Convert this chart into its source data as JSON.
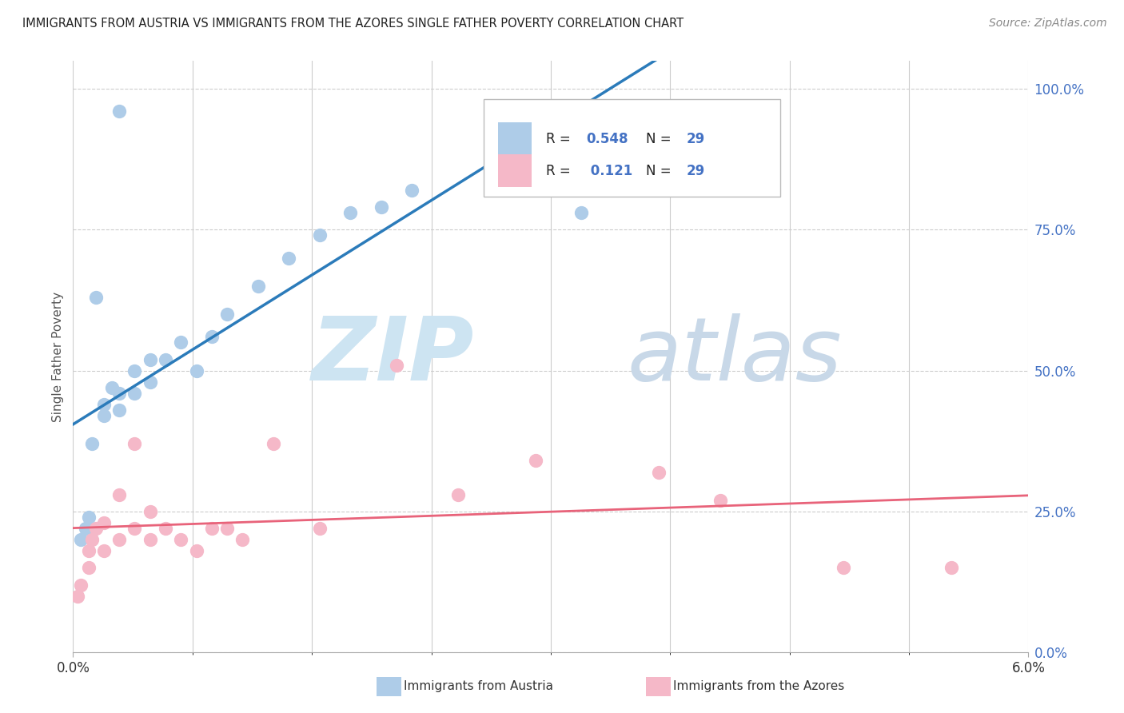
{
  "title": "IMMIGRANTS FROM AUSTRIA VS IMMIGRANTS FROM THE AZORES SINGLE FATHER POVERTY CORRELATION CHART",
  "source": "Source: ZipAtlas.com",
  "ylabel": "Single Father Poverty",
  "legend_label1": "Immigrants from Austria",
  "legend_label2": "Immigrants from the Azores",
  "R1": "0.548",
  "N1": "29",
  "R2": "0.121",
  "N2": "29",
  "austria_color": "#aecce8",
  "azores_color": "#f5b8c8",
  "austria_line_color": "#2b7bba",
  "azores_line_color": "#e8637a",
  "label_color": "#4472c4",
  "austria_x": [
    0.0005,
    0.0008,
    0.001,
    0.001,
    0.0012,
    0.0015,
    0.002,
    0.002,
    0.0025,
    0.003,
    0.003,
    0.003,
    0.004,
    0.004,
    0.005,
    0.005,
    0.006,
    0.007,
    0.008,
    0.009,
    0.01,
    0.012,
    0.014,
    0.016,
    0.018,
    0.02,
    0.022,
    0.028,
    0.033
  ],
  "austria_y": [
    0.2,
    0.22,
    0.22,
    0.24,
    0.37,
    0.63,
    0.42,
    0.44,
    0.47,
    0.43,
    0.46,
    0.96,
    0.46,
    0.5,
    0.48,
    0.52,
    0.52,
    0.55,
    0.5,
    0.56,
    0.6,
    0.65,
    0.7,
    0.74,
    0.78,
    0.79,
    0.82,
    0.87,
    0.78
  ],
  "azores_x": [
    0.0003,
    0.0005,
    0.001,
    0.001,
    0.0012,
    0.0015,
    0.002,
    0.002,
    0.003,
    0.003,
    0.004,
    0.004,
    0.005,
    0.005,
    0.006,
    0.007,
    0.008,
    0.009,
    0.01,
    0.011,
    0.013,
    0.016,
    0.021,
    0.025,
    0.03,
    0.038,
    0.042,
    0.05,
    0.057
  ],
  "azores_y": [
    0.1,
    0.12,
    0.15,
    0.18,
    0.2,
    0.22,
    0.18,
    0.23,
    0.2,
    0.28,
    0.22,
    0.37,
    0.2,
    0.25,
    0.22,
    0.2,
    0.18,
    0.22,
    0.22,
    0.2,
    0.37,
    0.22,
    0.51,
    0.28,
    0.34,
    0.32,
    0.27,
    0.15,
    0.15
  ],
  "xlim": [
    0.0,
    0.062
  ],
  "ylim": [
    0.0,
    1.05
  ],
  "yticks": [
    0.0,
    0.25,
    0.5,
    0.75,
    1.0
  ],
  "ytick_labels": [
    "0.0%",
    "25.0%",
    "50.0%",
    "75.0%",
    "100.0%"
  ],
  "figsize": [
    14.06,
    8.92
  ],
  "dpi": 100
}
